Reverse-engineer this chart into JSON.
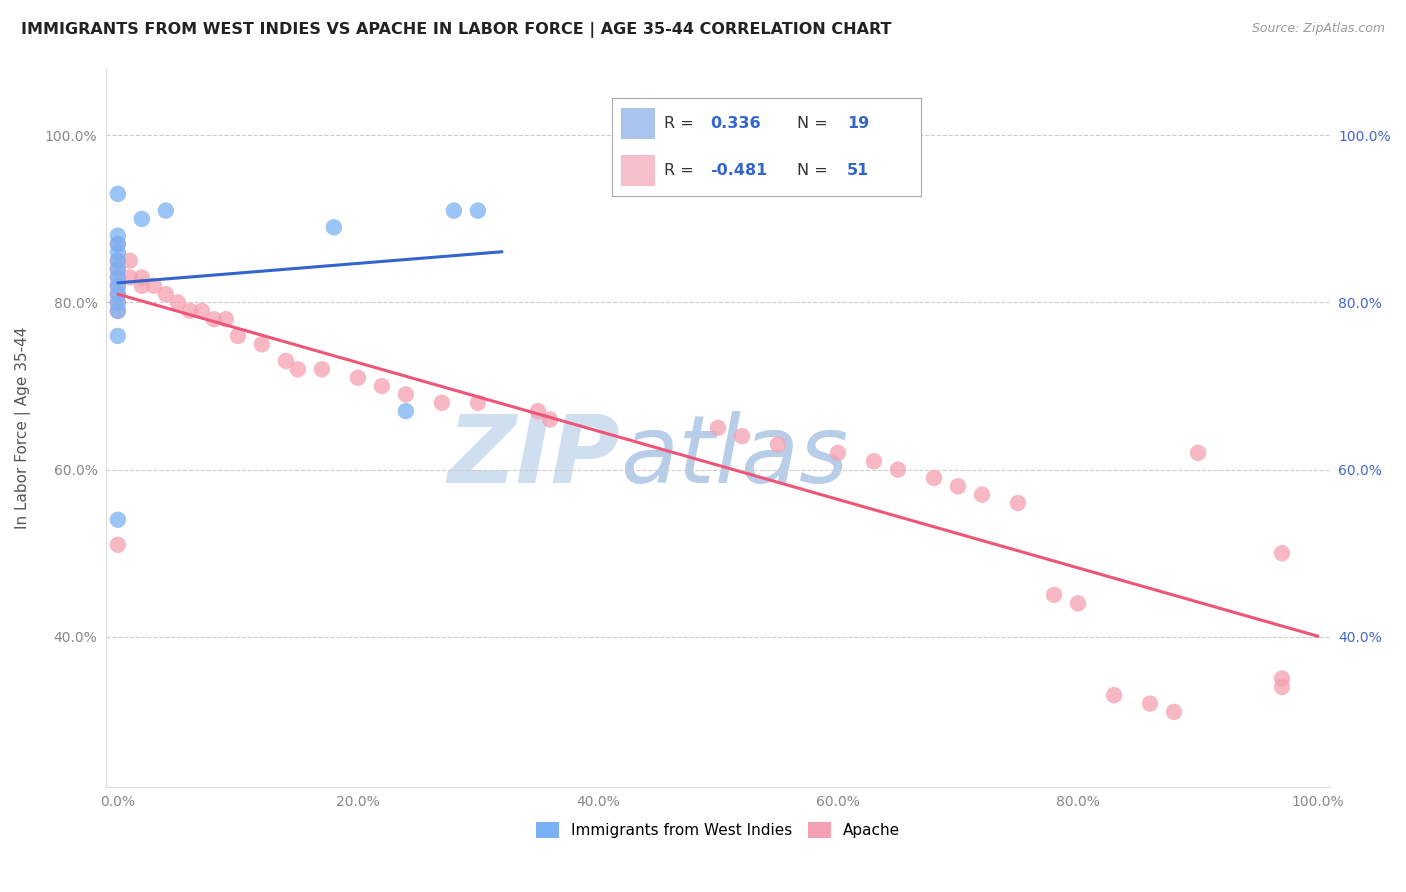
{
  "title": "IMMIGRANTS FROM WEST INDIES VS APACHE IN LABOR FORCE | AGE 35-44 CORRELATION CHART",
  "source": "Source: ZipAtlas.com",
  "ylabel": "In Labor Force | Age 35-44",
  "xlim": [
    -0.01,
    1.01
  ],
  "ylim": [
    0.22,
    1.08
  ],
  "xticks": [
    0.0,
    0.2,
    0.4,
    0.6,
    0.8,
    1.0
  ],
  "yticks": [
    0.4,
    0.6,
    0.8,
    1.0
  ],
  "xticklabels": [
    "0.0%",
    "20.0%",
    "40.0%",
    "60.0%",
    "80.0%",
    "100.0%"
  ],
  "yticklabels_left": [
    "40.0%",
    "60.0%",
    "80.0%",
    "100.0%"
  ],
  "yticklabels_right": [
    "40.0%",
    "60.0%",
    "80.0%",
    "100.0%"
  ],
  "blue_R": 0.336,
  "blue_N": 19,
  "pink_R": -0.481,
  "pink_N": 51,
  "blue_scatter_x": [
    0.0,
    0.0,
    0.0,
    0.0,
    0.0,
    0.0,
    0.0,
    0.0,
    0.0,
    0.0,
    0.0,
    0.0,
    0.0,
    0.02,
    0.04,
    0.18,
    0.24,
    0.28,
    0.3
  ],
  "blue_scatter_y": [
    0.54,
    0.93,
    0.88,
    0.87,
    0.86,
    0.85,
    0.84,
    0.83,
    0.82,
    0.81,
    0.8,
    0.79,
    0.76,
    0.9,
    0.91,
    0.89,
    0.67,
    0.91,
    0.91
  ],
  "pink_scatter_x": [
    0.0,
    0.0,
    0.0,
    0.0,
    0.0,
    0.0,
    0.0,
    0.0,
    0.0,
    0.01,
    0.01,
    0.02,
    0.02,
    0.03,
    0.04,
    0.05,
    0.06,
    0.07,
    0.08,
    0.09,
    0.1,
    0.12,
    0.14,
    0.15,
    0.17,
    0.2,
    0.22,
    0.24,
    0.27,
    0.3,
    0.35,
    0.36,
    0.5,
    0.52,
    0.55,
    0.6,
    0.63,
    0.65,
    0.68,
    0.7,
    0.72,
    0.75,
    0.78,
    0.8,
    0.83,
    0.86,
    0.88,
    0.9,
    0.97,
    0.97,
    0.97
  ],
  "pink_scatter_y": [
    0.87,
    0.85,
    0.84,
    0.83,
    0.82,
    0.81,
    0.8,
    0.79,
    0.51,
    0.85,
    0.83,
    0.83,
    0.82,
    0.82,
    0.81,
    0.8,
    0.79,
    0.79,
    0.78,
    0.78,
    0.76,
    0.75,
    0.73,
    0.72,
    0.72,
    0.71,
    0.7,
    0.69,
    0.68,
    0.68,
    0.67,
    0.66,
    0.65,
    0.64,
    0.63,
    0.62,
    0.61,
    0.6,
    0.59,
    0.58,
    0.57,
    0.56,
    0.45,
    0.44,
    0.33,
    0.32,
    0.31,
    0.62,
    0.35,
    0.34,
    0.5
  ],
  "blue_color": "#7ab0f5",
  "pink_color": "#f5a0b0",
  "blue_line_color": "#3366cc",
  "pink_line_color": "#ee5577",
  "legend_box_blue": "#aac4f0",
  "legend_box_pink": "#f5c0cc",
  "background_color": "#ffffff",
  "grid_color": "#cccccc",
  "watermark_zip_color": "#d0dff0",
  "watermark_atlas_color": "#b8cee8",
  "title_color": "#222222",
  "source_color": "#999999",
  "tick_color": "#888888",
  "right_tick_color": "#4466cc"
}
